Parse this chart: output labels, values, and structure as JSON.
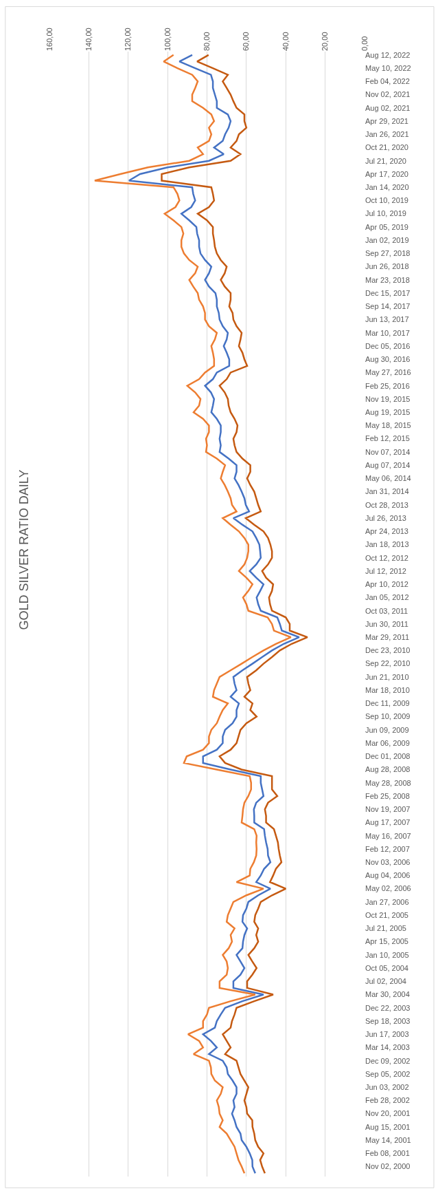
{
  "chart_data": {
    "type": "line",
    "title": "GOLD SILVER RATIO DAILY",
    "orientation": "horizontal",
    "categories": [
      "Aug 12, 2022",
      null,
      "May 10, 2022",
      null,
      "Feb 04, 2022",
      null,
      "Nov 02, 2021",
      null,
      "Aug 02, 2021",
      null,
      "Apr 29, 2021",
      null,
      "Jan 26, 2021",
      null,
      "Oct 21, 2020",
      null,
      "Jul 21, 2020",
      null,
      "Apr 17, 2020",
      null,
      "Jan 14, 2020",
      null,
      "Oct 10, 2019",
      null,
      "Jul 10, 2019",
      null,
      "Apr 05, 2019",
      null,
      "Jan 02, 2019",
      null,
      "Sep 27, 2018",
      null,
      "Jun 26, 2018",
      null,
      "Mar 23, 2018",
      null,
      "Dec 15, 2017",
      null,
      "Sep 14, 2017",
      null,
      "Jun 13, 2017",
      null,
      "Mar 10, 2017",
      null,
      "Dec 05, 2016",
      null,
      "Aug 30, 2016",
      null,
      "May 27, 2016",
      null,
      "Feb 25, 2016",
      null,
      "Nov 19, 2015",
      null,
      "Aug 19, 2015",
      null,
      "May 18, 2015",
      null,
      "Feb 12, 2015",
      null,
      "Nov 07, 2014",
      null,
      "Aug 07, 2014",
      null,
      "May 06, 2014",
      null,
      "Jan 31, 2014",
      null,
      "Oct 28, 2013",
      null,
      "Jul 26, 2013",
      null,
      "Apr 24, 2013",
      null,
      "Jan 18, 2013",
      null,
      "Oct 12, 2012",
      null,
      "Jul 12, 2012",
      null,
      "Apr 10, 2012",
      null,
      "Jan 05, 2012",
      null,
      "Oct 03, 2011",
      null,
      "Jun 30, 2011",
      null,
      "Mar 29, 2011",
      null,
      "Dec 23, 2010",
      null,
      "Sep 22, 2010",
      null,
      "Jun 21, 2010",
      null,
      "Mar 18, 2010",
      null,
      "Dec 11, 2009",
      null,
      "Sep 10, 2009",
      null,
      "Jun 09, 2009",
      null,
      "Mar 06, 2009",
      null,
      "Dec 01, 2008",
      null,
      "Aug 28, 2008",
      null,
      "May 28, 2008",
      null,
      "Feb 25, 2008",
      null,
      "Nov 19, 2007",
      null,
      "Aug 17, 2007",
      null,
      "May 16, 2007",
      null,
      "Feb 12, 2007",
      null,
      "Nov 03, 2006",
      null,
      "Aug 04, 2006",
      null,
      "May 02, 2006",
      null,
      "Jan 27, 2006",
      null,
      "Oct 21, 2005",
      null,
      "Jul 21, 2005",
      null,
      "Apr 15, 2005",
      null,
      "Jan 10, 2005",
      null,
      "Oct 05, 2004",
      null,
      "Jul 02, 2004",
      null,
      "Mar 30, 2004",
      null,
      "Dec 22, 2003",
      null,
      "Sep 18, 2003",
      null,
      "Jun 17, 2003",
      null,
      "Mar 14, 2003",
      null,
      "Dec 09, 2002",
      null,
      "Sep 05, 2002",
      null,
      "Jun 03, 2002",
      null,
      "Feb 28, 2002",
      null,
      "Nov 20, 2001",
      null,
      "Aug 15, 2001",
      null,
      "May 14, 2001",
      null,
      "Feb 08, 2001",
      null,
      "Nov 02, 2000",
      null
    ],
    "series": [
      {
        "color": "#ed7d31",
        "values": [
          97,
          102,
          95,
          87.5,
          84.7,
          86,
          87.5,
          87.5,
          82,
          77.8,
          76.4,
          79,
          77.8,
          79,
          84.7,
          82,
          89,
          110,
          124,
          137,
          97,
          95,
          94,
          96,
          101.5,
          97,
          93,
          92,
          93,
          93,
          91.7,
          89,
          84.7,
          86,
          89,
          87,
          84.7,
          84,
          82,
          81,
          81,
          79,
          75,
          76,
          77.8,
          77,
          76.4,
          76.4,
          81,
          84,
          90,
          86,
          83.3,
          84,
          86.8,
          82,
          79,
          79,
          80.5,
          80,
          80.5,
          75,
          70.8,
          72,
          73,
          71,
          69.4,
          68,
          67.3,
          65,
          72,
          68,
          63.8,
          61,
          59,
          59,
          59.6,
          61,
          63.8,
          60,
          56.9,
          59,
          61.7,
          60,
          59,
          49.2,
          47,
          46,
          37.4,
          45,
          51.3,
          57,
          62.4,
          68,
          73.6,
          75,
          76.4,
          77,
          69.4,
          72,
          73.6,
          75,
          77.8,
          79,
          79,
          82,
          90.3,
          91.7,
          75,
          58.3,
          57.6,
          57.6,
          59,
          61,
          61.7,
          62,
          62.4,
          56,
          54.8,
          55,
          54.8,
          55,
          56.2,
          58,
          58.3,
          65,
          51.3,
          60,
          66.6,
          68,
          69.4,
          70,
          66,
          68,
          67.3,
          69,
          72,
          70,
          69.4,
          70,
          73.6,
          73.6,
          55.5,
          68,
          79,
          80,
          82,
          82,
          89.6,
          84,
          82,
          86.8,
          79,
          78,
          77.8,
          76,
          72,
          73,
          75,
          74,
          73.6,
          72,
          73.6,
          70,
          68,
          66,
          65,
          64,
          62.4,
          61
        ]
      },
      {
        "color": "#4472c4",
        "values": [
          87.5,
          94,
          86,
          78,
          77,
          77,
          76,
          75,
          75,
          69.4,
          68,
          69,
          70.8,
          72,
          76.4,
          71.5,
          79,
          100,
          114,
          119.6,
          87.5,
          87,
          86,
          88,
          93,
          89,
          85.4,
          85,
          84,
          84,
          83.3,
          81,
          77.8,
          79,
          81,
          79,
          75.7,
          75,
          75,
          74,
          73.6,
          72,
          69.4,
          70,
          71.5,
          70,
          68.7,
          68.7,
          75,
          77,
          81,
          78,
          76.4,
          77,
          77.8,
          75,
          73,
          73,
          73.6,
          73,
          73.6,
          69,
          65,
          65,
          66,
          64,
          62.4,
          61,
          60.3,
          58.6,
          66.6,
          62,
          56.9,
          55,
          53.4,
          53,
          52.7,
          55,
          58.3,
          55,
          51.3,
          53,
          54.8,
          54,
          52.7,
          44.3,
          43,
          42,
          33.2,
          41,
          47,
          52,
          56.9,
          62,
          66.6,
          66,
          65,
          68,
          63.8,
          65,
          65,
          67,
          70.8,
          72,
          72,
          75,
          82,
          82,
          68,
          52.7,
          52.7,
          52,
          51.3,
          55,
          56.2,
          56,
          56,
          51,
          50.6,
          50,
          49.2,
          49,
          47.8,
          51,
          52.7,
          55,
          47.8,
          54,
          59,
          60,
          61.7,
          62,
          59.6,
          61,
          61.7,
          62,
          65,
          63,
          61,
          63,
          66.6,
          66.6,
          51.3,
          62,
          70.8,
          73,
          75,
          76,
          82,
          78,
          75,
          79,
          72,
          70,
          69.4,
          67,
          65,
          65,
          66.6,
          66,
          67.3,
          66,
          65,
          63,
          62.4,
          60,
          58.3,
          57,
          56.9,
          55.5
        ]
      },
      {
        "color": "#c55a11",
        "values": [
          79.2,
          85,
          77,
          69.4,
          72,
          70,
          68,
          66.6,
          65,
          61,
          61,
          60,
          63.8,
          65,
          68,
          63,
          68,
          89,
          103,
          103,
          77.8,
          77,
          76.4,
          79,
          84.7,
          80,
          77,
          77,
          76.4,
          76,
          75,
          73,
          70,
          71,
          73,
          71,
          68,
          68,
          68.7,
          67,
          66.6,
          65,
          62.4,
          63,
          63.8,
          62,
          61,
          59.6,
          68,
          70,
          73.6,
          71,
          69.4,
          69,
          68,
          66,
          64.5,
          65,
          66.6,
          66,
          65,
          62,
          58,
          58,
          59.6,
          58,
          56,
          55,
          54,
          52.7,
          60.3,
          56,
          51.3,
          49,
          47.8,
          47,
          47,
          49,
          52,
          50,
          46.4,
          47,
          48.5,
          48,
          47,
          40,
          38,
          38,
          29,
          37,
          43,
          47,
          51.3,
          55,
          59.6,
          59,
          58,
          61,
          56.9,
          58,
          54.8,
          60,
          63,
          64,
          65,
          68,
          73.6,
          70.8,
          62.4,
          47,
          47,
          47,
          44.3,
          49,
          50.6,
          50,
          50,
          46,
          45,
          44,
          43.6,
          43,
          42.2,
          45,
          46.4,
          48,
          40,
          47,
          52.7,
          54,
          55.5,
          56,
          54,
          55,
          54,
          56,
          59,
          57,
          54.8,
          57,
          59.6,
          59.6,
          46.4,
          56,
          65,
          66,
          67.3,
          68,
          72,
          70,
          68,
          70.8,
          65,
          64,
          63,
          61,
          59,
          60,
          61,
          60,
          59.6,
          57,
          56.9,
          56,
          55.5,
          54,
          51.3,
          53,
          52,
          50.6
        ]
      }
    ],
    "xlim": [
      160,
      0
    ],
    "xticks": [
      {
        "value": 160,
        "label": "160,00"
      },
      {
        "value": 140,
        "label": "140,00"
      },
      {
        "value": 120,
        "label": "120,00"
      },
      {
        "value": 100,
        "label": "100,00"
      },
      {
        "value": 80,
        "label": "80,00"
      },
      {
        "value": 60,
        "label": "60,00"
      },
      {
        "value": 40,
        "label": "40,00"
      },
      {
        "value": 20,
        "label": "20,00"
      },
      {
        "value": 0,
        "label": "0,00"
      }
    ],
    "grid": "x"
  }
}
